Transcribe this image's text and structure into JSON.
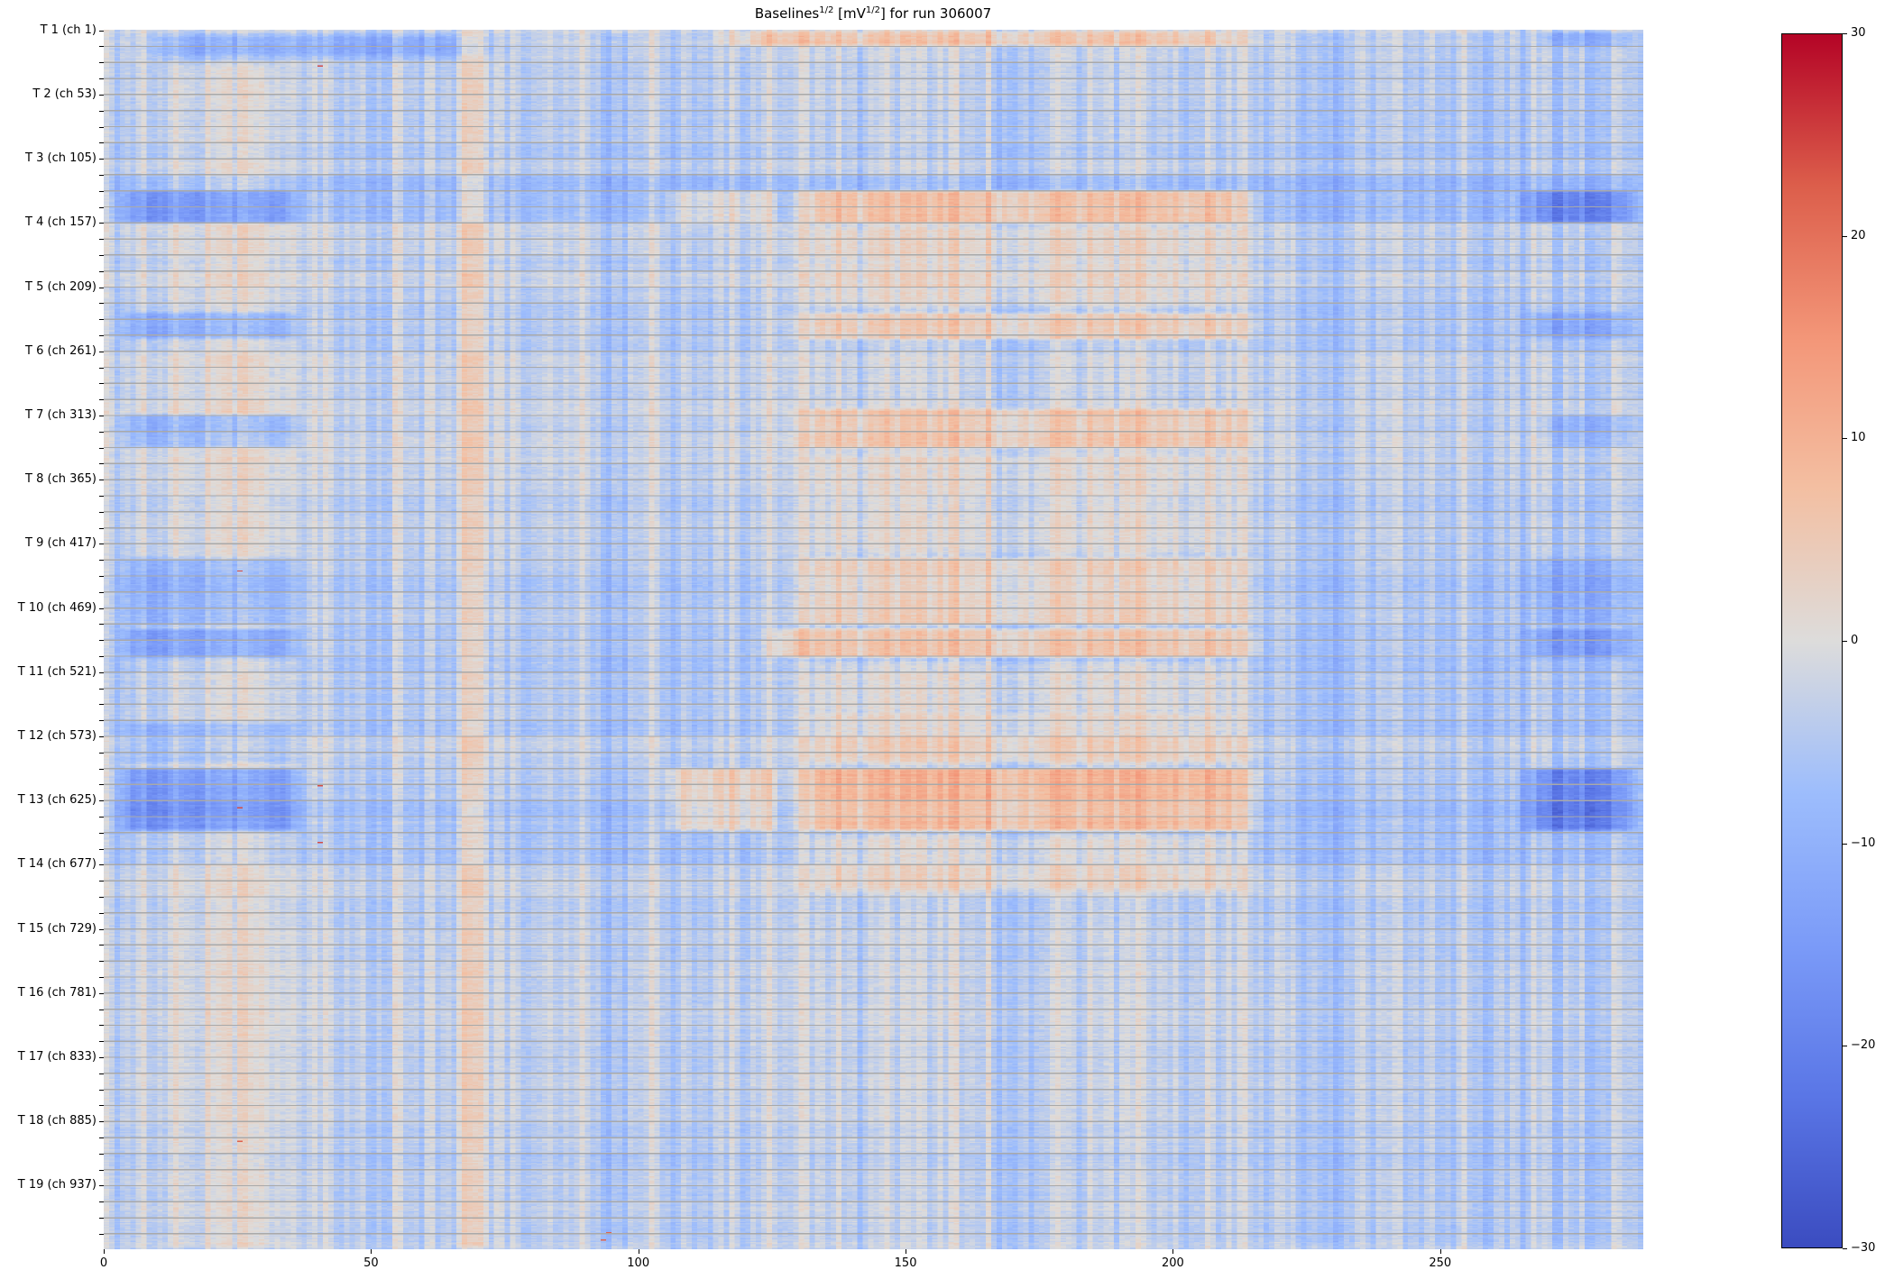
{
  "figure": {
    "title": {
      "pre": "Baselines",
      "sup1": "1/2",
      "mid": " [mV",
      "sup2": "1/2",
      "post": "] for run 306007"
    }
  },
  "chart_data": {
    "type": "heatmap",
    "title": "Baselines^{1/2} [mV^{1/2}] for run 306007",
    "x_axis": {
      "range": [
        0,
        288
      ],
      "ticks": [
        0,
        50,
        100,
        150,
        200,
        250
      ],
      "tick_labels": [
        "0",
        "50",
        "100",
        "150",
        "200",
        "250"
      ]
    },
    "y_axis": {
      "n_rows": 988,
      "channels_per_tower": 52,
      "minor_tick_every": 13,
      "tick_labels": [
        "T 1 (ch 1)",
        "T 2 (ch 53)",
        "T 3 (ch 105)",
        "T 4 (ch 157)",
        "T 5 (ch 209)",
        "T 6 (ch 261)",
        "T 7 (ch 313)",
        "T 8 (ch 365)",
        "T 9 (ch 417)",
        "T 10 (ch 469)",
        "T 11 (ch 521)",
        "T 12 (ch 573)",
        "T 13 (ch 625)",
        "T 14 (ch 677)",
        "T 15 (ch 729)",
        "T 16 (ch 781)",
        "T 17 (ch 833)",
        "T 18 (ch 885)",
        "T 19 (ch 937)"
      ]
    },
    "colorbar": {
      "vmin": -30,
      "vmax": 30,
      "ticks": [
        30,
        20,
        10,
        0,
        -10,
        -20,
        -30
      ],
      "tick_labels": [
        "30",
        "20",
        "10",
        "0",
        "−10",
        "−20",
        "−30"
      ],
      "cmap": "coolwarm",
      "stops": [
        [
          0.0,
          "#3b4cc0"
        ],
        [
          0.125,
          "#5a76e6"
        ],
        [
          0.25,
          "#7b9bf8"
        ],
        [
          0.375,
          "#9dbdfc"
        ],
        [
          0.5,
          "#dddcdb"
        ],
        [
          0.625,
          "#f3bfa2"
        ],
        [
          0.75,
          "#f39678"
        ],
        [
          0.875,
          "#dc5e4b"
        ],
        [
          1.0,
          "#b40426"
        ]
      ]
    },
    "gridline": {
      "every": 13,
      "color": "#a9a9a9"
    },
    "heatmap_synthesis": {
      "base": -3.5,
      "seed": 7,
      "stripe_waves": [
        {
          "amp": 1.7,
          "wl": 3.17,
          "ph": 0.9
        },
        {
          "amp": 1.3,
          "wl": 6.9,
          "ph": 2.3
        },
        {
          "amp": 1.1,
          "wl": 15.3,
          "ph": 4.1
        },
        {
          "amp": 0.9,
          "wl": 31.0,
          "ph": 1.2
        },
        {
          "amp": 0.6,
          "wl": 57.0,
          "ph": 5.0
        }
      ],
      "noise": {
        "col": 1.8,
        "row": 1.0,
        "block": 1.2,
        "tower": 1.2,
        "cell": 1.4
      },
      "features": [
        {
          "x": [
            4,
            78
          ],
          "rows": [
            0,
            27
          ],
          "dv": -8,
          "softx": 14,
          "softr": 8
        },
        {
          "x": [
            112,
            218
          ],
          "rows": [
            0,
            15
          ],
          "dv": 8,
          "softx": 12,
          "softr": 4
        },
        {
          "x": [
            266,
            288
          ],
          "rows": [
            0,
            15
          ],
          "dv": -6,
          "softx": 6,
          "softr": 3
        },
        {
          "x": [
            0,
            288
          ],
          "rows": [
            116,
            158
          ],
          "dv": -3,
          "softx": 2,
          "softr": 3
        },
        {
          "x": [
            2,
            38
          ],
          "rows": [
            129,
            158
          ],
          "dv": -10,
          "softx": 5,
          "softr": 3
        },
        {
          "x": [
            104,
            127
          ],
          "rows": [
            129,
            158
          ],
          "dv": 7,
          "softx": 3,
          "softr": 3
        },
        {
          "x": [
            127,
            218
          ],
          "rows": [
            129,
            158
          ],
          "dv": 13,
          "softx": 8,
          "softr": 3
        },
        {
          "x": [
            264,
            288
          ],
          "rows": [
            129,
            158
          ],
          "dv": -11,
          "softx": 5,
          "softr": 3
        },
        {
          "x": [
            127,
            218
          ],
          "rows": [
            158,
            228
          ],
          "dv": 4,
          "softx": 10,
          "softr": 6
        },
        {
          "x": [
            2,
            38
          ],
          "rows": [
            228,
            252
          ],
          "dv": -8,
          "softx": 5,
          "softr": 3
        },
        {
          "x": [
            127,
            218
          ],
          "rows": [
            228,
            252
          ],
          "dv": 8,
          "softx": 8,
          "softr": 3
        },
        {
          "x": [
            264,
            288
          ],
          "rows": [
            228,
            252
          ],
          "dv": -6,
          "softx": 5,
          "softr": 3
        },
        {
          "x": [
            2,
            38
          ],
          "rows": [
            310,
            340
          ],
          "dv": -8,
          "softx": 5,
          "softr": 3
        },
        {
          "x": [
            127,
            218
          ],
          "rows": [
            306,
            340
          ],
          "dv": 7,
          "softx": 8,
          "softr": 3
        },
        {
          "x": [
            268,
            288
          ],
          "rows": [
            310,
            340
          ],
          "dv": -5,
          "softx": 5,
          "softr": 3
        },
        {
          "x": [
            127,
            218
          ],
          "rows": [
            340,
            428
          ],
          "dv": 3,
          "softx": 10,
          "softr": 8
        },
        {
          "x": [
            2,
            38
          ],
          "rows": [
            426,
            484
          ],
          "dv": -7,
          "softx": 5,
          "softr": 4
        },
        {
          "x": [
            127,
            218
          ],
          "rows": [
            426,
            484
          ],
          "dv": 7,
          "softx": 8,
          "softr": 4
        },
        {
          "x": [
            264,
            288
          ],
          "rows": [
            426,
            484
          ],
          "dv": -5,
          "softx": 5,
          "softr": 4
        },
        {
          "x": [
            2,
            38
          ],
          "rows": [
            484,
            510
          ],
          "dv": -10,
          "softx": 5,
          "softr": 3
        },
        {
          "x": [
            122,
            218
          ],
          "rows": [
            484,
            510
          ],
          "dv": 10,
          "softx": 8,
          "softr": 3
        },
        {
          "x": [
            264,
            288
          ],
          "rows": [
            484,
            510
          ],
          "dv": -8,
          "softx": 5,
          "softr": 3
        },
        {
          "x": [
            127,
            218
          ],
          "rows": [
            510,
            556
          ],
          "dv": 4,
          "softx": 10,
          "softr": 6
        },
        {
          "x": [
            127,
            218
          ],
          "rows": [
            552,
            596
          ],
          "dv": 6,
          "softx": 10,
          "softr": 4
        },
        {
          "x": [
            2,
            38
          ],
          "rows": [
            560,
            596
          ],
          "dv": -5,
          "softx": 5,
          "softr": 4
        },
        {
          "x": [
            0,
            288
          ],
          "rows": [
            596,
            652
          ],
          "dv": -2,
          "softx": 2,
          "softr": 3
        },
        {
          "x": [
            2,
            38
          ],
          "rows": [
            597,
            650
          ],
          "dv": -12,
          "softx": 4,
          "softr": 3
        },
        {
          "x": [
            104,
            127
          ],
          "rows": [
            597,
            650
          ],
          "dv": 8,
          "softx": 3,
          "softr": 3
        },
        {
          "x": [
            127,
            218
          ],
          "rows": [
            597,
            650
          ],
          "dv": 13,
          "softx": 8,
          "softr": 3
        },
        {
          "x": [
            264,
            288
          ],
          "rows": [
            597,
            650
          ],
          "dv": -13,
          "softx": 5,
          "softr": 3
        },
        {
          "x": [
            127,
            218
          ],
          "rows": [
            650,
            700
          ],
          "dv": 5,
          "softx": 10,
          "softr": 6
        },
        {
          "x": [
            10,
            34
          ],
          "rows": [
            27,
            988
          ],
          "dv": 3,
          "softx": 3,
          "softr": 4
        },
        {
          "x": [
            268,
            288
          ],
          "rows": [
            0,
            988
          ],
          "dv": -2,
          "softx": 4,
          "softr": 4
        },
        {
          "x": [
            65,
            73
          ],
          "rows": [
            0,
            988
          ],
          "dv": 5,
          "softx": 2,
          "softr": 4
        },
        {
          "x": [
            92,
            101
          ],
          "rows": [
            0,
            988
          ],
          "dv": -3,
          "softx": 3,
          "softr": 4
        },
        {
          "x": [
            220,
            234
          ],
          "rows": [
            0,
            988
          ],
          "dv": -3,
          "softx": 4,
          "softr": 4
        },
        {
          "x": [
            246,
            263
          ],
          "rows": [
            0,
            988
          ],
          "dv": -3,
          "softx": 4,
          "softr": 4
        }
      ],
      "spots": [
        {
          "x": 40,
          "row": 29,
          "v": 24
        },
        {
          "x": 25,
          "row": 438,
          "v": 24
        },
        {
          "x": 40,
          "row": 612,
          "v": 24
        },
        {
          "x": 25,
          "row": 630,
          "v": 24
        },
        {
          "x": 40,
          "row": 658,
          "v": 24
        },
        {
          "x": 25,
          "row": 900,
          "v": 22
        },
        {
          "x": 94,
          "row": 974,
          "v": 22
        },
        {
          "x": 93,
          "row": 980,
          "v": 22
        }
      ]
    }
  }
}
